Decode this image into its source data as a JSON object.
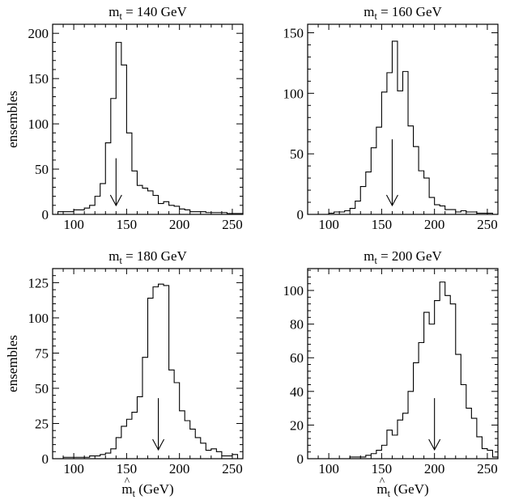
{
  "chart_data": [
    {
      "type": "histogram",
      "title": "m = 140 GeV",
      "title_main": "m",
      "title_sub": "t",
      "title_rest": " = 140 GeV",
      "ylabel": "ensembles",
      "xlabel": "",
      "xlim": [
        80,
        260
      ],
      "ylim": [
        0,
        210
      ],
      "xticks": [
        100,
        150,
        200,
        250
      ],
      "yticks": [
        0,
        50,
        100,
        150,
        200
      ],
      "arrow_x": 140,
      "arrow_top": 62,
      "bin_edges": [
        80,
        85,
        90,
        95,
        100,
        105,
        110,
        115,
        120,
        125,
        130,
        135,
        140,
        145,
        150,
        155,
        160,
        165,
        170,
        175,
        180,
        185,
        190,
        195,
        200,
        205,
        210,
        215,
        220,
        225,
        230,
        235,
        240,
        245,
        250,
        255,
        260
      ],
      "values": [
        0,
        3,
        3,
        3,
        5,
        5,
        7,
        10,
        20,
        34,
        79,
        128,
        190,
        165,
        90,
        48,
        32,
        29,
        26,
        21,
        12,
        14,
        10,
        9,
        6,
        5,
        3,
        3,
        3,
        2,
        2,
        2,
        2,
        1,
        1,
        1
      ]
    },
    {
      "type": "histogram",
      "title": "m = 160 GeV",
      "title_main": "m",
      "title_sub": "t",
      "title_rest": " = 160 GeV",
      "ylabel": "",
      "xlabel": "",
      "xlim": [
        80,
        260
      ],
      "ylim": [
        0,
        157
      ],
      "xticks": [
        100,
        150,
        200,
        250
      ],
      "yticks": [
        0,
        50,
        100,
        150
      ],
      "arrow_x": 160,
      "arrow_top": 62,
      "bin_edges": [
        80,
        85,
        90,
        95,
        100,
        105,
        110,
        115,
        120,
        125,
        130,
        135,
        140,
        145,
        150,
        155,
        160,
        165,
        170,
        175,
        180,
        185,
        190,
        195,
        200,
        205,
        210,
        215,
        220,
        225,
        230,
        235,
        240,
        245,
        250,
        255,
        260
      ],
      "values": [
        0,
        0,
        0,
        0,
        1,
        2,
        2,
        3,
        5,
        11,
        23,
        35,
        55,
        72,
        101,
        117,
        143,
        102,
        118,
        73,
        56,
        36,
        30,
        14,
        8,
        7,
        4,
        4,
        2,
        3,
        2,
        2,
        1,
        1,
        1,
        0
      ]
    },
    {
      "type": "histogram",
      "title": "m = 180 GeV",
      "title_main": "m",
      "title_sub": "t",
      "title_rest": " = 180 GeV",
      "ylabel": "ensembles",
      "xlabel": "m (GeV)",
      "xlim": [
        80,
        260
      ],
      "ylim": [
        0,
        135
      ],
      "xticks": [
        100,
        150,
        200,
        250
      ],
      "yticks": [
        0,
        25,
        50,
        75,
        100,
        125
      ],
      "arrow_x": 180,
      "arrow_top": 43,
      "bin_edges": [
        80,
        85,
        90,
        95,
        100,
        105,
        110,
        115,
        120,
        125,
        130,
        135,
        140,
        145,
        150,
        155,
        160,
        165,
        170,
        175,
        180,
        185,
        190,
        195,
        200,
        205,
        210,
        215,
        220,
        225,
        230,
        235,
        240,
        245,
        250,
        255,
        260
      ],
      "values": [
        0,
        0,
        1,
        1,
        1,
        1,
        1,
        2,
        2,
        3,
        4,
        7,
        15,
        23,
        28,
        33,
        44,
        72,
        114,
        122,
        124,
        123,
        63,
        54,
        34,
        27,
        21,
        15,
        11,
        6,
        7,
        5,
        2,
        2,
        3,
        0
      ]
    },
    {
      "type": "histogram",
      "title": "m = 200 GeV",
      "title_main": "m",
      "title_sub": "t",
      "title_rest": " = 200 GeV",
      "ylabel": "",
      "xlabel": "m (GeV)",
      "xlim": [
        80,
        260
      ],
      "ylim": [
        0,
        113
      ],
      "xticks": [
        100,
        150,
        200,
        250
      ],
      "yticks": [
        0,
        20,
        40,
        60,
        80,
        100
      ],
      "arrow_x": 200,
      "arrow_top": 36,
      "bin_edges": [
        80,
        85,
        90,
        95,
        100,
        105,
        110,
        115,
        120,
        125,
        130,
        135,
        140,
        145,
        150,
        155,
        160,
        165,
        170,
        175,
        180,
        185,
        190,
        195,
        200,
        205,
        210,
        215,
        220,
        225,
        230,
        235,
        240,
        245,
        250,
        255,
        260
      ],
      "values": [
        0,
        0,
        0,
        0,
        0,
        0,
        0,
        0,
        1,
        1,
        1,
        2,
        3,
        5,
        8,
        17,
        14,
        23,
        27,
        40,
        57,
        69,
        87,
        80,
        94,
        105,
        97,
        92,
        62,
        44,
        30,
        24,
        13,
        6,
        5,
        1
      ]
    }
  ],
  "xlabel_main": "m",
  "xlabel_sub": "t",
  "xlabel_rest": " (GeV)",
  "xlabel_hat": "^"
}
